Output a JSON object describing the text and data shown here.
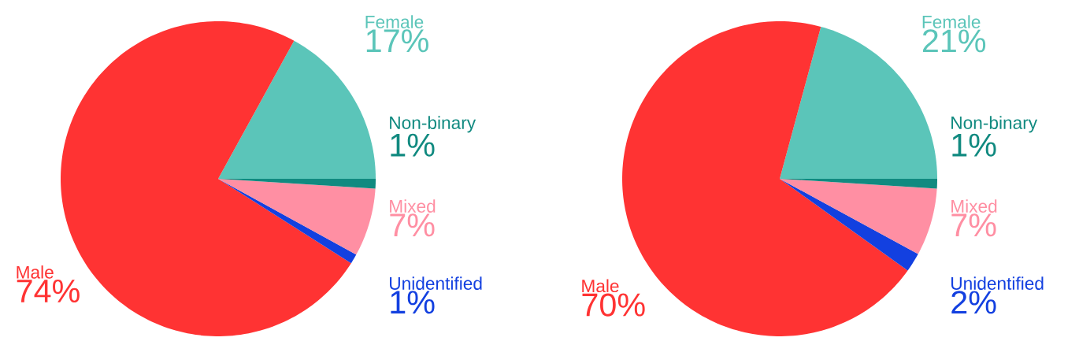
{
  "chart_data": [
    {
      "type": "pie",
      "categories": [
        "Female",
        "Male",
        "Unidentified",
        "Mixed",
        "Non-binary"
      ],
      "values": [
        17,
        74,
        1,
        7,
        1
      ],
      "colors": [
        "#5bc5b9",
        "#ff3333",
        "#1340e0",
        "#ff8fa3",
        "#118a80"
      ],
      "value_labels": [
        "17%",
        "74%",
        "1%",
        "7%",
        "1%"
      ]
    },
    {
      "type": "pie",
      "categories": [
        "Female",
        "Male",
        "Unidentified",
        "Mixed",
        "Non-binary"
      ],
      "values": [
        21,
        70,
        2,
        7,
        1
      ],
      "colors": [
        "#5bc5b9",
        "#ff3333",
        "#1340e0",
        "#ff8fa3",
        "#118a80"
      ],
      "value_labels": [
        "21%",
        "70%",
        "2%",
        "7%",
        "1%"
      ]
    }
  ]
}
